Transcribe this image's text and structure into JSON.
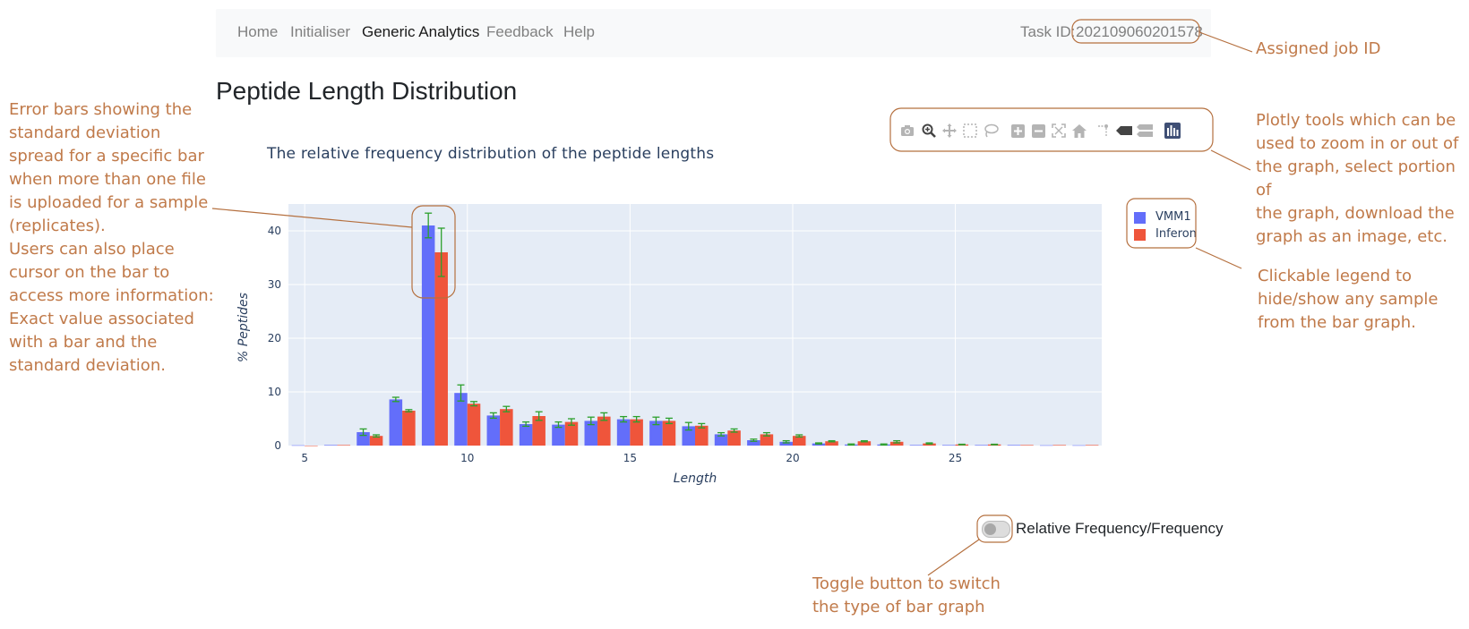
{
  "navbar": {
    "links": [
      "Home",
      "Initialiser",
      "Generic Analytics",
      "Feedback",
      "Help"
    ],
    "active": "Generic Analytics",
    "task_label": "Task ID:",
    "task_id": "202109060201578"
  },
  "page_title": "Peptide Length Distribution",
  "modebar": {
    "icons": [
      "camera-icon",
      "zoom-icon",
      "pan-icon",
      "box-select-icon",
      "lasso-select-icon",
      "zoom-in-icon",
      "zoom-out-icon",
      "autoscale-icon",
      "reset-axes-icon",
      "spike-lines-icon",
      "hover-closest-icon",
      "hover-compare-icon",
      "plotly-logo-icon"
    ]
  },
  "toggle": {
    "label": "Relative Frequency/Frequency",
    "checked": false
  },
  "annotations": {
    "job_id": "Assigned job ID",
    "error_bars": "Error bars showing the\nstandard deviation\nspread for a specific bar\nwhen more than one file\nis uploaded for a sample\n(replicates).\nUsers can also place\ncursor on the bar to\naccess more information:\nExact value associated\nwith a bar and the\nstandard deviation.",
    "plotly_tools": "Plotly tools which can be\nused to zoom in or out of\nthe graph, select portion of\nthe graph, download the\ngraph as an image, etc.",
    "legend": "Clickable legend to\nhide/show any sample\nfrom the bar graph.",
    "toggle": "Toggle button to switch\nthe type of bar graph"
  },
  "colors": {
    "vmm1": "#636efa",
    "inferon": "#ef553b",
    "error_bar": "#2ca02c",
    "plot_bg": "#e5ecf6",
    "annotation": "#c07a4a"
  },
  "chart_data": {
    "type": "bar",
    "title": "The relative frequency distribution of the peptide lengths",
    "xlabel": "Length",
    "ylabel": "% Peptides",
    "xlim": [
      4.5,
      29.5
    ],
    "ylim": [
      0,
      45
    ],
    "xticks": [
      5,
      10,
      15,
      20,
      25
    ],
    "yticks": [
      0,
      10,
      20,
      30,
      40
    ],
    "grid": true,
    "legend_position": "top-right",
    "x": [
      5,
      6,
      7,
      8,
      9,
      10,
      11,
      12,
      13,
      14,
      15,
      16,
      17,
      18,
      19,
      20,
      21,
      22,
      23,
      24,
      25,
      26,
      27,
      28,
      29
    ],
    "series": [
      {
        "name": "VMM1",
        "values": [
          0.05,
          0.1,
          2.5,
          8.6,
          41.0,
          9.8,
          5.6,
          4.0,
          3.9,
          4.6,
          4.9,
          4.6,
          3.6,
          2.1,
          1.0,
          0.7,
          0.4,
          0.2,
          0.2,
          0.1,
          0.1,
          0.1,
          0.1,
          0.05,
          0.05
        ],
        "errors": [
          0,
          0,
          0.6,
          0.4,
          2.3,
          1.5,
          0.5,
          0.4,
          0.5,
          0.7,
          0.5,
          0.7,
          0.7,
          0.3,
          0.2,
          0.2,
          0.1,
          0.1,
          0.1,
          0,
          0,
          0,
          0,
          0,
          0
        ]
      },
      {
        "name": "Inferon",
        "values": [
          0.0,
          0.1,
          1.8,
          6.5,
          36.0,
          7.8,
          6.8,
          5.5,
          4.4,
          5.4,
          4.9,
          4.6,
          3.7,
          2.8,
          2.1,
          1.8,
          0.8,
          0.8,
          0.7,
          0.4,
          0.2,
          0.2,
          0.1,
          0.1,
          0.1
        ],
        "errors": [
          0,
          0,
          0.2,
          0.2,
          4.5,
          0.4,
          0.5,
          0.8,
          0.6,
          0.7,
          0.5,
          0.5,
          0.4,
          0.3,
          0.3,
          0.2,
          0.1,
          0.1,
          0.2,
          0.1,
          0.05,
          0.05,
          0,
          0,
          0
        ]
      }
    ]
  }
}
